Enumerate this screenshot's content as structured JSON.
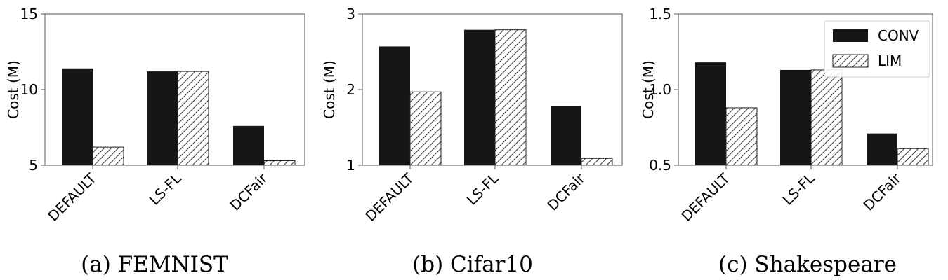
{
  "chart_data": [
    {
      "type": "bar",
      "caption": "(a) FEMNIST",
      "ylabel": "Cost (M)",
      "categories": [
        "DEFAULT",
        "LS-FL",
        "DCFair"
      ],
      "ylim": [
        5,
        15
      ],
      "yticks": [
        "5",
        "10",
        "15"
      ],
      "ytick_values": [
        5,
        10,
        15
      ],
      "series": [
        {
          "name": "CONV",
          "values": [
            11.4,
            11.2,
            7.6
          ]
        },
        {
          "name": "LIM",
          "values": [
            6.2,
            11.2,
            5.3
          ]
        }
      ],
      "legend": false
    },
    {
      "type": "bar",
      "caption": "(b) Cifar10",
      "ylabel": "Cost (M)",
      "categories": [
        "DEFAULT",
        "LS-FL",
        "DCFair"
      ],
      "ylim": [
        1,
        3
      ],
      "yticks": [
        "1",
        "2",
        "3"
      ],
      "ytick_values": [
        1,
        2,
        3
      ],
      "series": [
        {
          "name": "CONV",
          "values": [
            2.57,
            2.79,
            1.78
          ]
        },
        {
          "name": "LIM",
          "values": [
            1.97,
            2.79,
            1.09
          ]
        }
      ],
      "legend": false
    },
    {
      "type": "bar",
      "caption": "(c) Shakespeare",
      "ylabel": "Cost (M)",
      "categories": [
        "DEFAULT",
        "LS-FL",
        "DCFair"
      ],
      "ylim": [
        0.5,
        1.5
      ],
      "yticks": [
        "0.5",
        "1.0",
        "1.5"
      ],
      "ytick_values": [
        0.5,
        1.0,
        1.5
      ],
      "series": [
        {
          "name": "CONV",
          "values": [
            1.18,
            1.13,
            0.71
          ]
        },
        {
          "name": "LIM",
          "values": [
            0.88,
            1.13,
            0.61
          ]
        }
      ],
      "legend": true,
      "legend_position": "top-right"
    }
  ],
  "colors": {
    "conv": "#161616",
    "lim_fill": "#ffffff",
    "hatch": "#3a3a3a",
    "axis": "#555555"
  }
}
